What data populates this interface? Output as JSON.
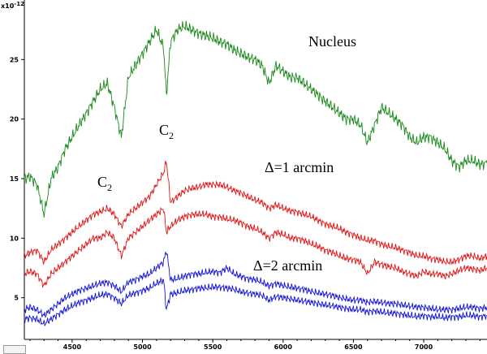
{
  "chart_data": {
    "type": "line",
    "title": "",
    "xlabel": "",
    "ylabel": "",
    "y_multiplier": "x10",
    "y_multiplier_exp": "-12",
    "xlim": [
      4160,
      7450
    ],
    "ylim": [
      1.5,
      30
    ],
    "x_ticks": [
      4500,
      5000,
      5500,
      6000,
      6500,
      7000
    ],
    "y_ticks": [
      5,
      10,
      15,
      20,
      25
    ],
    "grid": false,
    "colors": {
      "nucleus": "#1a8a1a",
      "one_arcmin": "#e01515",
      "two_arcmin": "#1515d8"
    },
    "annotations": {
      "nucleus": "Nucleus",
      "delta1": "Δ=1 arcmin",
      "delta2": "Δ=2 arcmin",
      "c2_main": "C",
      "c2_sub": "2"
    },
    "series": [
      {
        "key": "nucleus",
        "x": [
          4160,
          4200,
          4250,
          4300,
          4350,
          4400,
          4450,
          4500,
          4550,
          4600,
          4650,
          4700,
          4750,
          4800,
          4850,
          4900,
          4950,
          5000,
          5050,
          5100,
          5150,
          5170,
          5200,
          5250,
          5300,
          5350,
          5400,
          5450,
          5500,
          5550,
          5600,
          5650,
          5700,
          5750,
          5800,
          5850,
          5900,
          5950,
          6000,
          6050,
          6100,
          6150,
          6200,
          6250,
          6300,
          6350,
          6400,
          6450,
          6500,
          6550,
          6600,
          6650,
          6700,
          6750,
          6800,
          6850,
          6900,
          6950,
          7000,
          7050,
          7100,
          7150,
          7200,
          7250,
          7300,
          7350,
          7400,
          7450
        ],
        "y": [
          15,
          15.2,
          14.5,
          12,
          15,
          16,
          17.5,
          18.5,
          19.5,
          20.5,
          21.5,
          22.5,
          23,
          21,
          18.5,
          23.5,
          24.5,
          25.5,
          26.5,
          27.5,
          26,
          22,
          26.5,
          27.5,
          27.8,
          27.5,
          27.2,
          27,
          26.8,
          26.5,
          26.3,
          25.8,
          25.5,
          25.2,
          25,
          24.5,
          23,
          24.5,
          24,
          23.5,
          23.5,
          23,
          22.5,
          22,
          21.5,
          21,
          20.5,
          20,
          20,
          19.5,
          18,
          19.5,
          21,
          20.5,
          20,
          19.5,
          18.5,
          18,
          18.5,
          18.5,
          18,
          17.5,
          16.5,
          16,
          16.5,
          16.5,
          16.2,
          16.3
        ]
      },
      {
        "key": "one_arcmin_upper",
        "x": [
          4160,
          4200,
          4250,
          4300,
          4350,
          4400,
          4450,
          4500,
          4550,
          4600,
          4650,
          4700,
          4750,
          4800,
          4850,
          4900,
          4950,
          5000,
          5050,
          5100,
          5150,
          5170,
          5200,
          5250,
          5300,
          5350,
          5400,
          5450,
          5500,
          5550,
          5600,
          5650,
          5700,
          5750,
          5800,
          5850,
          5900,
          5950,
          6000,
          6050,
          6100,
          6150,
          6200,
          6250,
          6300,
          6350,
          6400,
          6450,
          6500,
          6550,
          6600,
          6650,
          6700,
          6750,
          6800,
          6850,
          6900,
          6950,
          7000,
          7050,
          7100,
          7150,
          7200,
          7250,
          7300,
          7350,
          7400,
          7450
        ],
        "y": [
          8.5,
          8.8,
          9,
          8,
          9,
          9.5,
          10,
          10.5,
          11,
          11.5,
          12,
          12.2,
          12.5,
          12,
          11,
          12,
          12.5,
          13,
          13.5,
          14.5,
          15.5,
          16.5,
          13,
          13.5,
          14,
          14.2,
          14.3,
          14.5,
          14.5,
          14.5,
          14.3,
          14,
          13.8,
          13.5,
          13.2,
          13,
          12.5,
          12.8,
          12.5,
          12.3,
          12.2,
          12,
          11.8,
          11.5,
          11.2,
          11,
          10.8,
          10.5,
          10.3,
          10,
          9.8,
          9.8,
          9.5,
          9.3,
          9.2,
          9,
          8.8,
          8.5,
          8.5,
          8.3,
          8.2,
          8,
          8,
          8.2,
          8.5,
          8.5,
          8.3,
          8.5
        ]
      },
      {
        "key": "one_arcmin_lower",
        "x": [
          4160,
          4200,
          4250,
          4300,
          4350,
          4400,
          4450,
          4500,
          4550,
          4600,
          4650,
          4700,
          4750,
          4800,
          4850,
          4900,
          4950,
          5000,
          5050,
          5100,
          5150,
          5170,
          5200,
          5250,
          5300,
          5350,
          5400,
          5450,
          5500,
          5550,
          5600,
          5650,
          5700,
          5750,
          5800,
          5850,
          5900,
          5950,
          6000,
          6050,
          6100,
          6150,
          6200,
          6250,
          6300,
          6350,
          6400,
          6450,
          6500,
          6550,
          6600,
          6650,
          6700,
          6750,
          6800,
          6850,
          6900,
          6950,
          7000,
          7050,
          7100,
          7150,
          7200,
          7250,
          7300,
          7350,
          7400,
          7450
        ],
        "y": [
          7,
          7.2,
          7,
          6,
          7,
          7.5,
          8,
          8.5,
          9,
          9.5,
          10,
          10,
          10.5,
          10,
          8.5,
          10,
          10.5,
          11,
          11.5,
          12,
          12.5,
          10.5,
          11,
          11.5,
          11.8,
          12,
          12,
          12,
          11.8,
          11.8,
          11.6,
          11.5,
          11.3,
          11,
          10.8,
          10.5,
          10,
          10.5,
          10.3,
          10,
          10,
          9.8,
          9.5,
          9.3,
          9,
          8.8,
          8.5,
          8.3,
          8.2,
          8,
          7,
          8,
          7.8,
          7.6,
          7.5,
          7.2,
          7,
          6.8,
          7.2,
          7,
          7,
          6.8,
          7,
          7.3,
          7.5,
          7.4,
          7.3,
          7.5
        ]
      },
      {
        "key": "two_arcmin_upper",
        "x": [
          4160,
          4200,
          4250,
          4300,
          4350,
          4400,
          4450,
          4500,
          4550,
          4600,
          4650,
          4700,
          4750,
          4800,
          4850,
          4900,
          4950,
          5000,
          5050,
          5100,
          5150,
          5170,
          5200,
          5250,
          5300,
          5350,
          5400,
          5450,
          5500,
          5550,
          5600,
          5650,
          5700,
          5750,
          5800,
          5850,
          5900,
          5950,
          6000,
          6050,
          6100,
          6150,
          6200,
          6250,
          6300,
          6350,
          6400,
          6450,
          6500,
          6550,
          6600,
          6650,
          6700,
          6750,
          6800,
          6850,
          6900,
          6950,
          7000,
          7050,
          7100,
          7150,
          7200,
          7250,
          7300,
          7350,
          7400,
          7450
        ],
        "y": [
          4,
          4.2,
          4,
          3.5,
          4,
          4.5,
          5,
          5.3,
          5.6,
          5.8,
          6,
          6.2,
          6.3,
          6,
          5.5,
          6.3,
          6.5,
          6.8,
          7,
          7.5,
          8,
          9,
          6.5,
          6.6,
          6.8,
          7,
          7,
          7.1,
          7.2,
          7.1,
          7.5,
          7,
          6.8,
          6.6,
          6.5,
          6.3,
          6,
          6.2,
          6,
          5.9,
          5.8,
          5.7,
          5.5,
          5.4,
          5.3,
          5.2,
          5,
          4.9,
          4.8,
          4.8,
          4.6,
          4.7,
          4.6,
          4.5,
          4.5,
          4.4,
          4.3,
          4.2,
          4.2,
          4.1,
          4,
          4,
          4,
          4.1,
          4.2,
          4.2,
          4.1,
          4.2
        ]
      },
      {
        "key": "two_arcmin_lower",
        "x": [
          4160,
          4200,
          4250,
          4300,
          4350,
          4400,
          4450,
          4500,
          4550,
          4600,
          4650,
          4700,
          4750,
          4800,
          4850,
          4900,
          4950,
          5000,
          5050,
          5100,
          5150,
          5170,
          5200,
          5250,
          5300,
          5350,
          5400,
          5450,
          5500,
          5550,
          5600,
          5650,
          5700,
          5750,
          5800,
          5850,
          5900,
          5950,
          6000,
          6050,
          6100,
          6150,
          6200,
          6250,
          6300,
          6350,
          6400,
          6450,
          6500,
          6550,
          6600,
          6650,
          6700,
          6750,
          6800,
          6850,
          6900,
          6950,
          7000,
          7050,
          7100,
          7150,
          7200,
          7250,
          7300,
          7350,
          7400,
          7450
        ],
        "y": [
          3.2,
          3.3,
          3.2,
          2.8,
          3.2,
          3.6,
          4,
          4.3,
          4.6,
          4.8,
          5,
          5.2,
          5.3,
          5,
          4.5,
          5.2,
          5.4,
          5.6,
          5.8,
          6.2,
          6.5,
          4,
          5.3,
          5.4,
          5.6,
          5.7,
          5.8,
          5.8,
          5.9,
          5.9,
          5.8,
          5.7,
          5.5,
          5.4,
          5.3,
          5.2,
          4.8,
          5.1,
          5,
          4.9,
          4.8,
          4.7,
          4.6,
          4.5,
          4.4,
          4.3,
          4.2,
          4.1,
          4,
          4,
          3.8,
          3.9,
          3.8,
          3.7,
          3.7,
          3.6,
          3.5,
          3.4,
          3.5,
          3.4,
          3.4,
          3.3,
          3.4,
          3.4,
          3.5,
          3.5,
          3.4,
          3.5
        ]
      }
    ]
  }
}
